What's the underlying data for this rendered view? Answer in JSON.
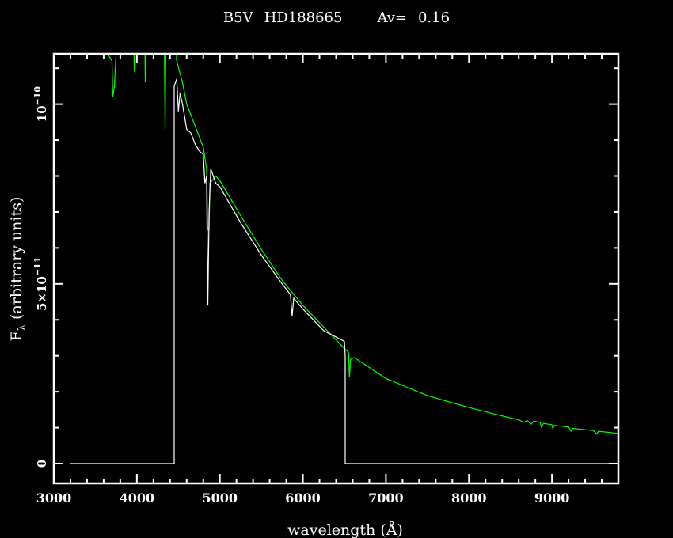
{
  "chart_data": {
    "type": "line",
    "title": {
      "spectral_type": "B5V",
      "star": "HD188665",
      "av_label": "Av=",
      "av_value": "0.16"
    },
    "xlabel": "wavelength (Å)",
    "ylabel": {
      "symbol": "F",
      "subscript": "λ",
      "text": "(arbitrary units)"
    },
    "xlim": [
      3000,
      9800
    ],
    "ylim": [
      -5.5e-12,
      1.14e-10
    ],
    "x_major_ticks": [
      3000,
      4000,
      5000,
      6000,
      7000,
      8000,
      9000
    ],
    "x_minor_step": 200,
    "y_major_ticks": [
      {
        "value": 0,
        "label": "0"
      },
      {
        "value": 5e-11,
        "label": "5×10",
        "exp": "−11"
      },
      {
        "value": 1e-10,
        "label": "10",
        "exp": "−10"
      }
    ],
    "y_minor_step": 1e-11,
    "grid": false,
    "colors": {
      "background": "#000000",
      "axes": "#ffffff",
      "observed": "#ffffff",
      "model": "#00ff00"
    },
    "series": [
      {
        "color": "#00ff00",
        "points": [
          [
            3600,
            1.16e-10
          ],
          [
            3650,
            1.14e-10
          ],
          [
            3700,
            1.12e-10
          ],
          [
            3710,
            1.02e-10
          ],
          [
            3730,
            1.05e-10
          ],
          [
            3750,
            1.14e-10
          ],
          [
            3760,
            1.2e-10
          ],
          [
            3960,
            1.2e-10
          ],
          [
            3970,
            1.09e-10
          ],
          [
            3980,
            1.2e-10
          ],
          [
            4095,
            1.2e-10
          ],
          [
            4102,
            1.06e-10
          ],
          [
            4110,
            1.2e-10
          ],
          [
            4330,
            1.2e-10
          ],
          [
            4340,
            9.3e-11
          ],
          [
            4350,
            1.2e-10
          ],
          [
            4460,
            1.2e-10
          ],
          [
            4480,
            1.12e-10
          ],
          [
            4550,
            1.06e-10
          ],
          [
            4600,
            1e-10
          ],
          [
            4700,
            9.4e-11
          ],
          [
            4800,
            8.8e-11
          ],
          [
            4840,
            8.2e-11
          ],
          [
            4855,
            6.5e-11
          ],
          [
            4870,
            6.5e-11
          ],
          [
            4880,
            7.8e-11
          ],
          [
            4950,
            8e-11
          ],
          [
            5000,
            7.87e-11
          ],
          [
            5250,
            6.9e-11
          ],
          [
            5500,
            5.96e-11
          ],
          [
            5750,
            5.1e-11
          ],
          [
            6000,
            4.4e-11
          ],
          [
            6250,
            3.8e-11
          ],
          [
            6500,
            3.2e-11
          ],
          [
            6550,
            3.1e-11
          ],
          [
            6560,
            2.4e-11
          ],
          [
            6575,
            2.9e-11
          ],
          [
            6620,
            2.95e-11
          ],
          [
            7000,
            2.37e-11
          ],
          [
            7500,
            1.89e-11
          ],
          [
            8000,
            1.56e-11
          ],
          [
            8500,
            1.27e-11
          ],
          [
            8600,
            1.22e-11
          ],
          [
            8660,
            1.15e-11
          ],
          [
            8700,
            1.2e-11
          ],
          [
            8750,
            1.1e-11
          ],
          [
            8780,
            1.18e-11
          ],
          [
            8860,
            1.15e-11
          ],
          [
            8870,
            1.02e-11
          ],
          [
            8900,
            1.12e-11
          ],
          [
            9000,
            1.08e-11
          ],
          [
            9010,
            9.8e-12
          ],
          [
            9030,
            1.06e-11
          ],
          [
            9200,
            1.02e-11
          ],
          [
            9230,
            9e-12
          ],
          [
            9250,
            9.8e-12
          ],
          [
            9500,
            9.2e-12
          ],
          [
            9540,
            8.2e-12
          ],
          [
            9560,
            9e-12
          ],
          [
            9800,
            8.4e-12
          ]
        ]
      },
      {
        "color": "#ffffff",
        "points": [
          [
            3200,
            0
          ],
          [
            4450,
            0
          ],
          [
            4450,
            1.05e-10
          ],
          [
            4480,
            1.07e-10
          ],
          [
            4500,
            9.8e-11
          ],
          [
            4520,
            1.03e-10
          ],
          [
            4550,
            1e-10
          ],
          [
            4600,
            9.3e-11
          ],
          [
            4650,
            9.2e-11
          ],
          [
            4700,
            8.9e-11
          ],
          [
            4750,
            8.7e-11
          ],
          [
            4800,
            8.6e-11
          ],
          [
            4820,
            7.8e-11
          ],
          [
            4840,
            8e-11
          ],
          [
            4855,
            4.4e-11
          ],
          [
            4870,
            7e-11
          ],
          [
            4890,
            8.2e-11
          ],
          [
            4950,
            7.8e-11
          ],
          [
            5000,
            7.7e-11
          ],
          [
            5250,
            6.7e-11
          ],
          [
            5500,
            5.8e-11
          ],
          [
            5750,
            5e-11
          ],
          [
            5850,
            4.7e-11
          ],
          [
            5870,
            4.1e-11
          ],
          [
            5890,
            4.6e-11
          ],
          [
            6000,
            4.3e-11
          ],
          [
            6250,
            3.7e-11
          ],
          [
            6500,
            3.4e-11
          ],
          [
            6510,
            3e-11
          ],
          [
            6510,
            0
          ],
          [
            9800,
            0
          ]
        ]
      }
    ]
  }
}
